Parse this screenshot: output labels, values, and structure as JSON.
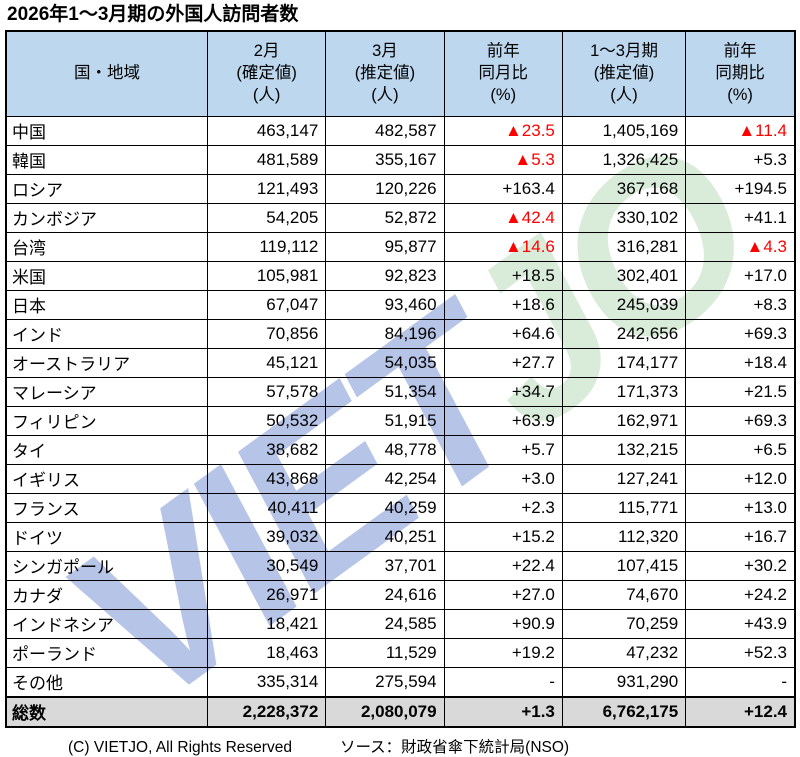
{
  "title": "2026年1～3月期の外国人訪問者数",
  "watermark": {
    "blue": "VIET",
    "green": "JO"
  },
  "colors": {
    "header_bg": "#bdd7ee",
    "total_row_bg": "#d9d9d9",
    "negative_value": "#ff0000",
    "border": "#000000",
    "watermark_blue": "#b6c4e7",
    "watermark_green": "#d9ecda"
  },
  "chart_data": {
    "type": "table",
    "title": "2026年1～3月期の外国人訪問者数",
    "columns": [
      "国・地域",
      "2月\n(確定値)\n(人)",
      "3月\n(推定値)\n(人)",
      "前年\n同月比\n(%)",
      "1～3月期\n(推定値)\n(人)",
      "前年\n同期比\n(%)"
    ],
    "rows": [
      [
        "中国",
        "463,147",
        "482,587",
        "▲23.5",
        "1,405,169",
        "▲11.4"
      ],
      [
        "韓国",
        "481,589",
        "355,167",
        "▲5.3",
        "1,326,425",
        "+5.3"
      ],
      [
        "ロシア",
        "121,493",
        "120,226",
        "+163.4",
        "367,168",
        "+194.5"
      ],
      [
        "カンボジア",
        "54,205",
        "52,872",
        "▲42.4",
        "330,102",
        "+41.1"
      ],
      [
        "台湾",
        "119,112",
        "95,877",
        "▲14.6",
        "316,281",
        "▲4.3"
      ],
      [
        "米国",
        "105,981",
        "92,823",
        "+18.5",
        "302,401",
        "+17.0"
      ],
      [
        "日本",
        "67,047",
        "93,460",
        "+18.6",
        "245,039",
        "+8.3"
      ],
      [
        "インド",
        "70,856",
        "84,196",
        "+64.6",
        "242,656",
        "+69.3"
      ],
      [
        "オーストラリア",
        "45,121",
        "54,035",
        "+27.7",
        "174,177",
        "+18.4"
      ],
      [
        "マレーシア",
        "57,578",
        "51,354",
        "+34.7",
        "171,373",
        "+21.5"
      ],
      [
        "フィリピン",
        "50,532",
        "51,915",
        "+63.9",
        "162,971",
        "+69.3"
      ],
      [
        "タイ",
        "38,682",
        "48,778",
        "+5.7",
        "132,215",
        "+6.5"
      ],
      [
        "イギリス",
        "43,868",
        "42,254",
        "+3.0",
        "127,241",
        "+12.0"
      ],
      [
        "フランス",
        "40,411",
        "40,259",
        "+2.3",
        "115,771",
        "+13.0"
      ],
      [
        "ドイツ",
        "39,032",
        "40,251",
        "+15.2",
        "112,320",
        "+16.7"
      ],
      [
        "シンガポール",
        "30,549",
        "37,701",
        "+22.4",
        "107,415",
        "+30.2"
      ],
      [
        "カナダ",
        "26,971",
        "24,616",
        "+27.0",
        "74,670",
        "+24.2"
      ],
      [
        "インドネシア",
        "18,421",
        "24,585",
        "+90.9",
        "70,259",
        "+43.9"
      ],
      [
        "ポーランド",
        "18,463",
        "11,529",
        "+19.2",
        "47,232",
        "+52.3"
      ],
      [
        "その他",
        "335,314",
        "275,594",
        "-",
        "931,290",
        "-"
      ]
    ],
    "total_row": [
      "総数",
      "2,228,372",
      "2,080,079",
      "+1.3",
      "6,762,175",
      "+12.4"
    ]
  },
  "footer": {
    "copyright": "(C) VIETJO, All Rights Reserved",
    "source": "ソース：財政省傘下統計局(NSO)"
  }
}
